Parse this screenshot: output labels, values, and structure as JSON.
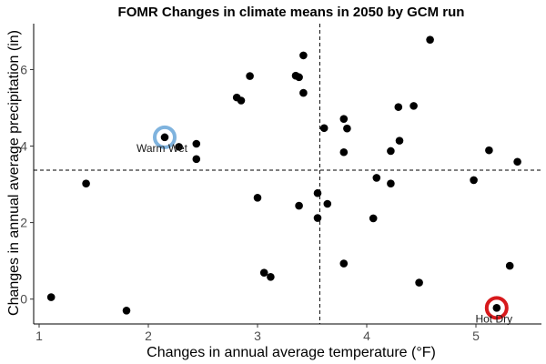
{
  "chart_data": {
    "type": "scatter",
    "title": "FOMR Changes in climate means in 2050 by GCM run",
    "xlabel": "Changes in annual average temperature (°F)",
    "ylabel": "Changes in annual average precipitation (in)",
    "xlim": [
      0.95,
      5.6
    ],
    "ylim": [
      -0.65,
      7.2
    ],
    "x_ticks": [
      1,
      2,
      3,
      4,
      5
    ],
    "y_ticks": [
      0,
      2,
      4,
      6
    ],
    "reference_lines": {
      "x_mean": 3.57,
      "y_mean": 3.37,
      "style": "dashed"
    },
    "grid": false,
    "legend": "none",
    "points": [
      {
        "x": 1.11,
        "y": 0.05
      },
      {
        "x": 1.43,
        "y": 3.02
      },
      {
        "x": 1.8,
        "y": -0.3
      },
      {
        "x": 2.15,
        "y": 4.23
      },
      {
        "x": 2.28,
        "y": 3.98
      },
      {
        "x": 2.44,
        "y": 4.06
      },
      {
        "x": 2.44,
        "y": 3.66
      },
      {
        "x": 2.81,
        "y": 5.27
      },
      {
        "x": 2.85,
        "y": 5.19
      },
      {
        "x": 2.93,
        "y": 5.83
      },
      {
        "x": 3.0,
        "y": 2.65
      },
      {
        "x": 3.06,
        "y": 0.69
      },
      {
        "x": 3.12,
        "y": 0.58
      },
      {
        "x": 3.35,
        "y": 5.84
      },
      {
        "x": 3.38,
        "y": 5.8
      },
      {
        "x": 3.38,
        "y": 2.44
      },
      {
        "x": 3.42,
        "y": 6.37
      },
      {
        "x": 3.42,
        "y": 5.39
      },
      {
        "x": 3.55,
        "y": 2.77
      },
      {
        "x": 3.55,
        "y": 2.12
      },
      {
        "x": 3.61,
        "y": 4.47
      },
      {
        "x": 3.64,
        "y": 2.49
      },
      {
        "x": 3.79,
        "y": 4.71
      },
      {
        "x": 3.79,
        "y": 3.84
      },
      {
        "x": 3.79,
        "y": 0.93
      },
      {
        "x": 3.82,
        "y": 4.46
      },
      {
        "x": 4.06,
        "y": 2.11
      },
      {
        "x": 4.09,
        "y": 3.17
      },
      {
        "x": 4.22,
        "y": 3.87
      },
      {
        "x": 4.22,
        "y": 3.02
      },
      {
        "x": 4.29,
        "y": 5.02
      },
      {
        "x": 4.3,
        "y": 4.14
      },
      {
        "x": 4.43,
        "y": 5.05
      },
      {
        "x": 4.48,
        "y": 0.43
      },
      {
        "x": 4.58,
        "y": 6.78
      },
      {
        "x": 4.98,
        "y": 3.11
      },
      {
        "x": 5.12,
        "y": 3.89
      },
      {
        "x": 5.19,
        "y": -0.23
      },
      {
        "x": 5.31,
        "y": 0.87
      },
      {
        "x": 5.38,
        "y": 3.59
      }
    ],
    "highlights": [
      {
        "label": "Warm Wet",
        "x": 2.15,
        "y": 4.23,
        "color": "#7fb3de"
      },
      {
        "label": "Hot Dry",
        "x": 5.19,
        "y": -0.23,
        "color": "#d7191c"
      }
    ]
  }
}
